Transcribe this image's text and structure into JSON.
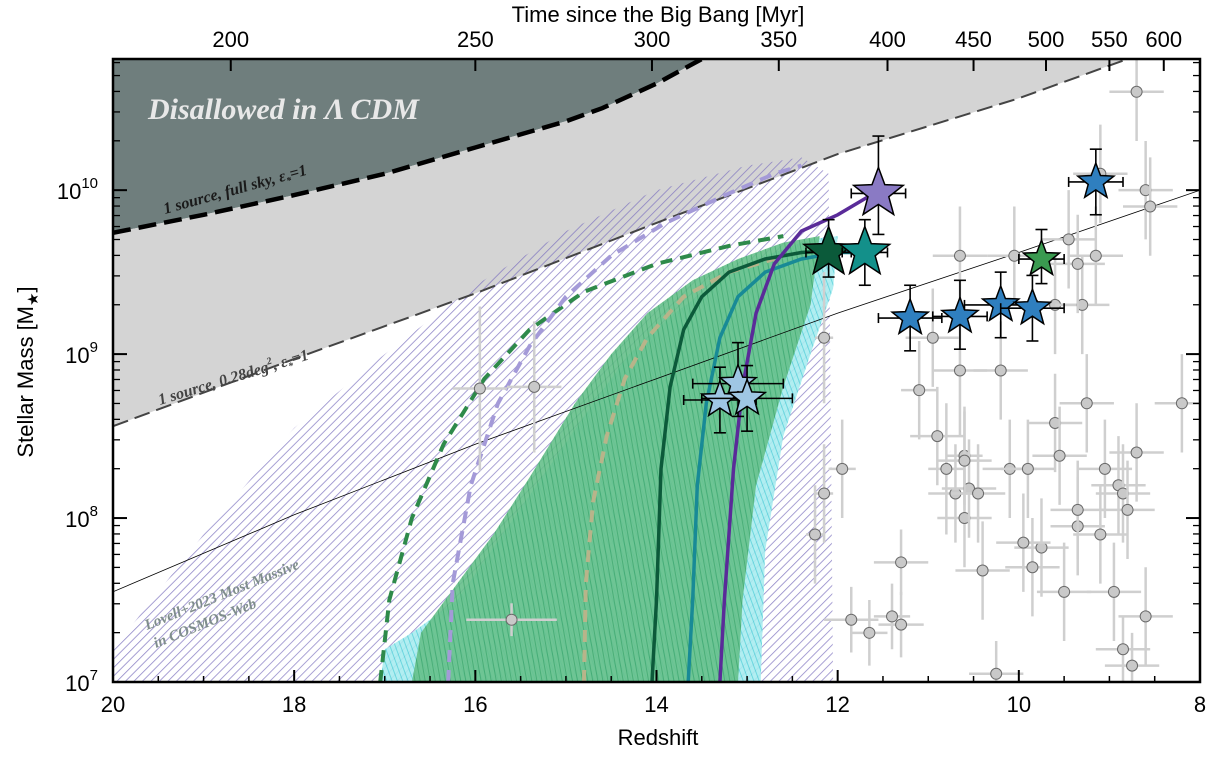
{
  "chart_data": {
    "type": "scatter",
    "title": "",
    "xlabel": "Redshift",
    "ylabel": "Stellar Mass [M",
    "ylabel_sub": "★",
    "ylabel_close": "]",
    "top_xlabel": "Time since the Big Bang [Myr]",
    "xlim": [
      20,
      8
    ],
    "ylim_log10": [
      7,
      10.8
    ],
    "y_scale": "log",
    "x_ticks": [
      {
        "value": 20,
        "label": "20"
      },
      {
        "value": 18,
        "label": "18"
      },
      {
        "value": 16,
        "label": "16"
      },
      {
        "value": 14,
        "label": "14"
      },
      {
        "value": 12,
        "label": "12"
      },
      {
        "value": 10,
        "label": "10"
      },
      {
        "value": 8,
        "label": "8"
      }
    ],
    "y_ticks": [
      {
        "value": 7,
        "base": "10",
        "exp": "7"
      },
      {
        "value": 8,
        "base": "10",
        "exp": "8"
      },
      {
        "value": 9,
        "base": "10",
        "exp": "9"
      },
      {
        "value": 10,
        "base": "10",
        "exp": "10"
      }
    ],
    "top_ticks": [
      {
        "z": 18.7,
        "label": "200"
      },
      {
        "z": 16.0,
        "label": "250"
      },
      {
        "z": 14.05,
        "label": "300"
      },
      {
        "z": 12.65,
        "label": "350"
      },
      {
        "z": 11.45,
        "label": "400"
      },
      {
        "z": 10.5,
        "label": "450"
      },
      {
        "z": 9.7,
        "label": "500"
      },
      {
        "z": 9.0,
        "label": "550"
      },
      {
        "z": 8.4,
        "label": "600"
      }
    ],
    "annotations": {
      "disallowed": "Disallowed in Λ CDM",
      "full_sky": "1 source, full sky, ε",
      "full_sky_tail": "=1",
      "survey": "1 source, 0.28deg",
      "survey_sup": "2",
      "survey_tail": ", ε",
      "survey_tail2": "=1",
      "lovell_line1": "Lovell+2023 Most Massive",
      "lovell_line2": "in COSMOS-Web"
    },
    "curves": {
      "full_sky_limit": [
        [
          20,
          9.74
        ],
        [
          19,
          9.85
        ],
        [
          18,
          9.97
        ],
        [
          17,
          10.1
        ],
        [
          16,
          10.26
        ],
        [
          15,
          10.42
        ],
        [
          14.6,
          10.5
        ],
        [
          14,
          10.65
        ],
        [
          13.5,
          10.8
        ]
      ],
      "survey_limit": [
        [
          20,
          8.56
        ],
        [
          18,
          8.97
        ],
        [
          16,
          9.37
        ],
        [
          14,
          9.8
        ],
        [
          12,
          10.22
        ],
        [
          10,
          10.56
        ],
        [
          8.8,
          10.8
        ]
      ],
      "lovell_line": [
        [
          20,
          7.55
        ],
        [
          18,
          8.02
        ],
        [
          16,
          8.45
        ],
        [
          14,
          8.85
        ],
        [
          12,
          9.25
        ],
        [
          10,
          9.62
        ],
        [
          8,
          10.0
        ]
      ],
      "purple_solid": [
        [
          13.3,
          7.0
        ],
        [
          13.25,
          7.5
        ],
        [
          13.15,
          8.3
        ],
        [
          13.05,
          8.8
        ],
        [
          12.9,
          9.25
        ],
        [
          12.7,
          9.55
        ],
        [
          12.4,
          9.75
        ],
        [
          12.0,
          9.85
        ],
        [
          11.6,
          9.98
        ]
      ],
      "teal_solid": [
        [
          13.65,
          7.0
        ],
        [
          13.6,
          7.5
        ],
        [
          13.55,
          8.2
        ],
        [
          13.45,
          8.7
        ],
        [
          13.3,
          9.1
        ],
        [
          13.1,
          9.35
        ],
        [
          12.8,
          9.5
        ],
        [
          12.4,
          9.58
        ],
        [
          12.0,
          9.62
        ],
        [
          11.7,
          9.62
        ]
      ],
      "darkgreen_solid": [
        [
          14.05,
          7.0
        ],
        [
          14.0,
          7.5
        ],
        [
          13.95,
          8.3
        ],
        [
          13.85,
          8.8
        ],
        [
          13.7,
          9.15
        ],
        [
          13.5,
          9.35
        ],
        [
          13.2,
          9.5
        ],
        [
          12.8,
          9.58
        ],
        [
          12.4,
          9.62
        ],
        [
          12.1,
          9.63
        ]
      ],
      "green_dashed": [
        [
          17.05,
          7.0
        ],
        [
          16.95,
          7.5
        ],
        [
          16.7,
          8.0
        ],
        [
          16.35,
          8.45
        ],
        [
          15.9,
          8.85
        ],
        [
          15.4,
          9.15
        ],
        [
          14.8,
          9.38
        ],
        [
          14.0,
          9.55
        ],
        [
          13.2,
          9.66
        ],
        [
          12.6,
          9.72
        ]
      ],
      "purple_dashed": [
        [
          16.3,
          7.0
        ],
        [
          16.25,
          7.6
        ],
        [
          16.05,
          8.2
        ],
        [
          15.75,
          8.7
        ],
        [
          15.4,
          9.05
        ],
        [
          15.0,
          9.35
        ],
        [
          14.5,
          9.6
        ],
        [
          13.9,
          9.8
        ],
        [
          13.2,
          9.98
        ],
        [
          12.7,
          10.1
        ],
        [
          12.4,
          10.15
        ]
      ],
      "tan_dashed": [
        [
          14.8,
          7.0
        ],
        [
          14.78,
          7.6
        ],
        [
          14.7,
          8.1
        ],
        [
          14.55,
          8.5
        ],
        [
          14.35,
          8.85
        ],
        [
          14.1,
          9.1
        ],
        [
          13.7,
          9.35
        ],
        [
          13.2,
          9.5
        ],
        [
          12.7,
          9.58
        ]
      ]
    },
    "bands": {
      "purple_hatch": [
        [
          20,
          7.0
        ],
        [
          20,
          7.2
        ],
        [
          19,
          7.9
        ],
        [
          18,
          8.55
        ],
        [
          17,
          9.0
        ],
        [
          16,
          9.42
        ],
        [
          15,
          9.75
        ],
        [
          14,
          10.0
        ],
        [
          13,
          10.15
        ],
        [
          12.4,
          10.2
        ],
        [
          12.1,
          10.1
        ],
        [
          12.05,
          7.0
        ]
      ],
      "cyan": [
        [
          17.05,
          7.0
        ],
        [
          17.0,
          7.2
        ],
        [
          16.7,
          7.3
        ],
        [
          16.2,
          7.5
        ],
        [
          15.7,
          7.9
        ],
        [
          15.2,
          8.3
        ],
        [
          14.7,
          8.7
        ],
        [
          14.3,
          9.0
        ],
        [
          13.8,
          9.25
        ],
        [
          13.3,
          9.45
        ],
        [
          12.8,
          9.6
        ],
        [
          12.3,
          9.7
        ],
        [
          12.0,
          9.72
        ],
        [
          12.05,
          9.4
        ],
        [
          12.3,
          9.0
        ],
        [
          12.6,
          8.5
        ],
        [
          12.8,
          7.8
        ],
        [
          12.85,
          7.0
        ]
      ],
      "green": [
        [
          16.7,
          7.0
        ],
        [
          16.6,
          7.3
        ],
        [
          16.2,
          7.6
        ],
        [
          15.8,
          7.9
        ],
        [
          15.4,
          8.25
        ],
        [
          14.9,
          8.7
        ],
        [
          14.5,
          9.0
        ],
        [
          14.1,
          9.25
        ],
        [
          13.6,
          9.45
        ],
        [
          13.1,
          9.58
        ],
        [
          12.6,
          9.68
        ],
        [
          12.2,
          9.72
        ],
        [
          12.3,
          9.3
        ],
        [
          12.6,
          8.8
        ],
        [
          12.9,
          8.2
        ],
        [
          13.05,
          7.5
        ],
        [
          13.1,
          7.0
        ]
      ]
    },
    "grey_points": [
      {
        "z": 15.95,
        "m": 8.79,
        "ex": 0.3,
        "ey": 0.5
      },
      {
        "z": 15.35,
        "m": 8.8,
        "ex": 0.3,
        "ey": 0.4
      },
      {
        "z": 15.6,
        "m": 7.38,
        "ex": 0.5,
        "ey": 0.1
      },
      {
        "z": 12.15,
        "m": 9.1,
        "ex": 0.1,
        "ey": 0.4
      },
      {
        "z": 12.25,
        "m": 7.9,
        "ex": 0.1,
        "ey": 0.3
      },
      {
        "z": 12.15,
        "m": 8.15,
        "ex": 0.1,
        "ey": 0.3
      },
      {
        "z": 11.95,
        "m": 8.3,
        "ex": 0.15,
        "ey": 0.3
      },
      {
        "z": 11.85,
        "m": 7.38,
        "ex": 0.3,
        "ey": 0.2
      },
      {
        "z": 11.65,
        "m": 7.3,
        "ex": 0.2,
        "ey": 0.2
      },
      {
        "z": 11.4,
        "m": 7.4,
        "ex": 0.2,
        "ey": 0.2
      },
      {
        "z": 11.3,
        "m": 7.35,
        "ex": 0.25,
        "ey": 0.2
      },
      {
        "z": 11.3,
        "m": 7.73,
        "ex": 0.3,
        "ey": 0.2
      },
      {
        "z": 11.1,
        "m": 8.78,
        "ex": 0.2,
        "ey": 0.3
      },
      {
        "z": 10.95,
        "m": 9.1,
        "ex": 0.3,
        "ey": 0.3
      },
      {
        "z": 10.9,
        "m": 8.5,
        "ex": 0.3,
        "ey": 0.3
      },
      {
        "z": 10.8,
        "m": 8.3,
        "ex": 0.2,
        "ey": 0.4
      },
      {
        "z": 10.7,
        "m": 8.15,
        "ex": 0.3,
        "ey": 0.3
      },
      {
        "z": 10.6,
        "m": 8.38,
        "ex": 0.2,
        "ey": 0.3
      },
      {
        "z": 10.6,
        "m": 8.0,
        "ex": 0.3,
        "ey": 0.3
      },
      {
        "z": 10.65,
        "m": 8.9,
        "ex": 0.3,
        "ey": 0.4
      },
      {
        "z": 10.65,
        "m": 9.6,
        "ex": 0.3,
        "ey": 0.3
      },
      {
        "z": 10.55,
        "m": 8.18,
        "ex": 0.3,
        "ey": 0.3
      },
      {
        "z": 10.45,
        "m": 8.15,
        "ex": 0.3,
        "ey": 0.3
      },
      {
        "z": 10.4,
        "m": 7.68,
        "ex": 0.3,
        "ey": 0.3
      },
      {
        "z": 10.6,
        "m": 8.35,
        "ex": 0.3,
        "ey": 0.3
      },
      {
        "z": 10.2,
        "m": 8.9,
        "ex": 0.3,
        "ey": 0.3
      },
      {
        "z": 10.25,
        "m": 7.05,
        "ex": 0.3,
        "ey": 0.2
      },
      {
        "z": 10.1,
        "m": 8.3,
        "ex": 0.3,
        "ey": 0.3
      },
      {
        "z": 10.05,
        "m": 9.6,
        "ex": 0.3,
        "ey": 0.3
      },
      {
        "z": 9.9,
        "m": 8.3,
        "ex": 0.3,
        "ey": 0.3
      },
      {
        "z": 9.85,
        "m": 7.7,
        "ex": 0.3,
        "ey": 0.3
      },
      {
        "z": 9.75,
        "m": 7.82,
        "ex": 0.3,
        "ey": 0.3
      },
      {
        "z": 9.95,
        "m": 7.85,
        "ex": 0.3,
        "ey": 0.3
      },
      {
        "z": 9.6,
        "m": 8.58,
        "ex": 0.3,
        "ey": 0.3
      },
      {
        "z": 9.6,
        "m": 9.3,
        "ex": 0.3,
        "ey": 0.3
      },
      {
        "z": 9.55,
        "m": 8.38,
        "ex": 0.3,
        "ey": 0.3
      },
      {
        "z": 9.5,
        "m": 7.55,
        "ex": 0.3,
        "ey": 0.3
      },
      {
        "z": 9.45,
        "m": 9.7,
        "ex": 0.3,
        "ey": 0.3
      },
      {
        "z": 9.35,
        "m": 7.95,
        "ex": 0.3,
        "ey": 0.3
      },
      {
        "z": 9.35,
        "m": 8.05,
        "ex": 0.3,
        "ey": 0.3
      },
      {
        "z": 9.3,
        "m": 9.3,
        "ex": 0.3,
        "ey": 0.3
      },
      {
        "z": 9.35,
        "m": 9.55,
        "ex": 0.3,
        "ey": 0.3
      },
      {
        "z": 9.15,
        "m": 9.6,
        "ex": 0.3,
        "ey": 0.3
      },
      {
        "z": 9.1,
        "m": 10.1,
        "ex": 0.3,
        "ey": 0.3
      },
      {
        "z": 9.05,
        "m": 8.3,
        "ex": 0.3,
        "ey": 0.3
      },
      {
        "z": 8.95,
        "m": 7.55,
        "ex": 0.3,
        "ey": 0.3
      },
      {
        "z": 8.9,
        "m": 8.2,
        "ex": 0.3,
        "ey": 0.3
      },
      {
        "z": 8.85,
        "m": 8.15,
        "ex": 0.3,
        "ey": 0.3
      },
      {
        "z": 8.85,
        "m": 7.2,
        "ex": 0.3,
        "ey": 0.2
      },
      {
        "z": 8.8,
        "m": 8.05,
        "ex": 0.3,
        "ey": 0.3
      },
      {
        "z": 8.75,
        "m": 7.1,
        "ex": 0.3,
        "ey": 0.2
      },
      {
        "z": 8.7,
        "m": 10.6,
        "ex": 0.3,
        "ey": 0.3
      },
      {
        "z": 8.6,
        "m": 10.0,
        "ex": 0.3,
        "ey": 0.3
      },
      {
        "z": 8.55,
        "m": 9.9,
        "ex": 0.3,
        "ey": 0.3
      },
      {
        "z": 8.7,
        "m": 8.4,
        "ex": 0.3,
        "ey": 0.3
      },
      {
        "z": 8.6,
        "m": 7.4,
        "ex": 0.3,
        "ey": 0.3
      },
      {
        "z": 8.2,
        "m": 8.7,
        "ex": 0.3,
        "ey": 0.3
      },
      {
        "z": 9.1,
        "m": 7.9,
        "ex": 0.3,
        "ey": 0.3
      },
      {
        "z": 9.25,
        "m": 8.7,
        "ex": 0.3,
        "ey": 0.3
      }
    ],
    "stars": [
      {
        "z": 11.55,
        "m": 9.98,
        "ex": 0.3,
        "ey_up": 0.35,
        "ey_dn": 0.25,
        "color": "#8a7ac4",
        "size": 26
      },
      {
        "z": 12.1,
        "m": 9.62,
        "ex": 0.25,
        "ey_up": 0.2,
        "ey_dn": 0.15,
        "color": "#0b5a3a",
        "size": 26
      },
      {
        "z": 11.7,
        "m": 9.62,
        "ex": 0.25,
        "ey_up": 0.2,
        "ey_dn": 0.2,
        "color": "#13908a",
        "size": 26
      },
      {
        "z": 13.1,
        "m": 8.82,
        "ex": 0.5,
        "ey_up": 0.25,
        "ey_dn": 0.2,
        "color": "#9fc6e4",
        "size": 19
      },
      {
        "z": 13.3,
        "m": 8.72,
        "ex": 0.4,
        "ey_up": 0.2,
        "ey_dn": 0.2,
        "color": "#9fc6e4",
        "size": 19
      },
      {
        "z": 13.0,
        "m": 8.73,
        "ex": 0.5,
        "ey_up": 0.2,
        "ey_dn": 0.2,
        "color": "#9fc6e4",
        "size": 19
      },
      {
        "z": 11.2,
        "m": 9.22,
        "ex": 0.35,
        "ey_up": 0.2,
        "ey_dn": 0.2,
        "color": "#2f7fbf",
        "size": 19
      },
      {
        "z": 10.65,
        "m": 9.23,
        "ex": 0.3,
        "ey_up": 0.22,
        "ey_dn": 0.2,
        "color": "#2f7fbf",
        "size": 19
      },
      {
        "z": 10.2,
        "m": 9.3,
        "ex": 0.4,
        "ey_up": 0.2,
        "ey_dn": 0.2,
        "color": "#2f7fbf",
        "size": 19
      },
      {
        "z": 9.85,
        "m": 9.28,
        "ex": 0.35,
        "ey_up": 0.2,
        "ey_dn": 0.2,
        "color": "#2f7fbf",
        "size": 19
      },
      {
        "z": 9.15,
        "m": 10.05,
        "ex": 0.3,
        "ey_up": 0.2,
        "ey_dn": 0.2,
        "color": "#2f7fbf",
        "size": 19
      },
      {
        "z": 9.75,
        "m": 9.58,
        "ex": 0.25,
        "ey_up": 0.18,
        "ey_dn": 0.15,
        "color": "#3a9a50",
        "size": 19
      }
    ],
    "colors": {
      "disallowed": "#6f7e7d",
      "grey_band": "#d4d4d4",
      "purple_hatch": "#7f74c0",
      "cyan_band": "#80e0e6",
      "green_band": "#55b87a",
      "purple_line": "#5a2b99",
      "teal_line": "#188a96",
      "darkgreen_line": "#0c5a3a",
      "green_dash": "#2e8a4a",
      "lavender_dash": "#a49ad8",
      "tan_dash": "#b8b48a",
      "grey_point": "#c9c9c9"
    },
    "grid": false
  }
}
